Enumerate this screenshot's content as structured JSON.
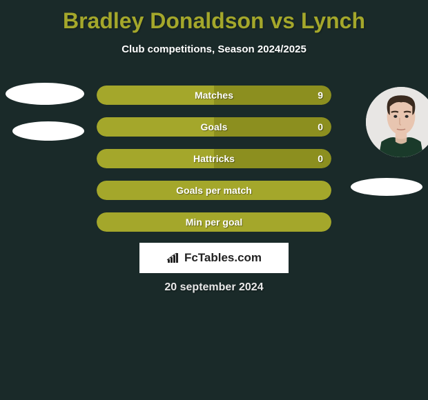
{
  "title": {
    "player1": "Bradley Donaldson",
    "vs": "vs",
    "player2": "Lynch",
    "color": "#a4a72b"
  },
  "subtitle": "Club competitions, Season 2024/2025",
  "colors": {
    "background": "#1a2a29",
    "bar_left": "#a4a72b",
    "bar_right": "#8c8f1f",
    "bar_full": "#a4a72b",
    "text": "#ffffff",
    "brand_bg": "#ffffff",
    "brand_text": "#222222"
  },
  "bars": [
    {
      "label": "Matches",
      "left_pct": 50,
      "right_pct": 50,
      "right_value": "9",
      "split": true
    },
    {
      "label": "Goals",
      "left_pct": 50,
      "right_pct": 50,
      "right_value": "0",
      "split": true
    },
    {
      "label": "Hattricks",
      "left_pct": 50,
      "right_pct": 50,
      "right_value": "0",
      "split": true
    },
    {
      "label": "Goals per match",
      "left_pct": 100,
      "right_pct": 0,
      "right_value": "",
      "split": false
    },
    {
      "label": "Min per goal",
      "left_pct": 100,
      "right_pct": 0,
      "right_value": "",
      "split": false
    }
  ],
  "brand": "FcTables.com",
  "date": "20 september 2024"
}
